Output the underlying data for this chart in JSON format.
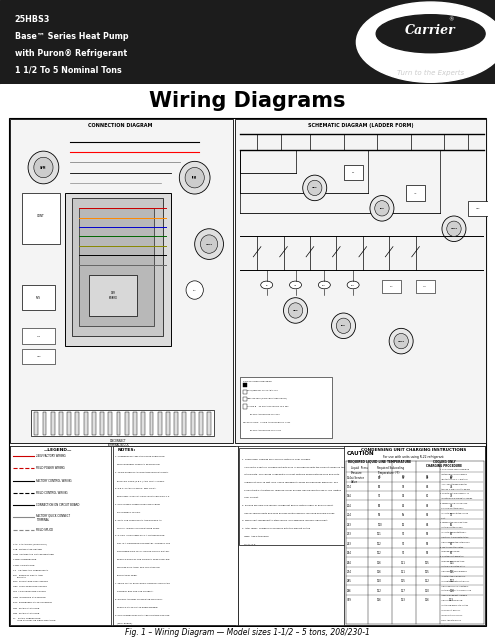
{
  "bg_color": "#ffffff",
  "header_bg": "#1c1c1c",
  "header_text_color": "#ffffff",
  "header_line1": "25HBS3",
  "header_line2": "Base™ Series Heat Pump",
  "header_line3": "with Puron® Refrigerant",
  "header_line4": "1 1/2 To 5 Nominal Tons",
  "title": "Wiring Diagrams",
  "carrier_text": "Carrier",
  "carrier_tagline": "Turn to the Experts",
  "fig_caption": "Fig. 1 – Wiring Diagram — Model sizes 1-1/2 – 5 tons, 208/230-1",
  "conn_title": "CONNECTION DIAGRAM",
  "schem_title": "SCHEMATIC DIAGRAM (LADDER FORM)",
  "charge_title": "CONDENSING UNIT CHARGING INSTRUCTIONS",
  "charge_sub": "For use with units using R-22 refrigerant",
  "caution_title": "CAUTION",
  "legend_title": "—LEGEND—",
  "notes_title": "NOTES:",
  "page_border": "#000000",
  "diagram_border": "#000000",
  "light_gray": "#e8e8e8",
  "mid_gray": "#cccccc",
  "dark_gray": "#555555"
}
